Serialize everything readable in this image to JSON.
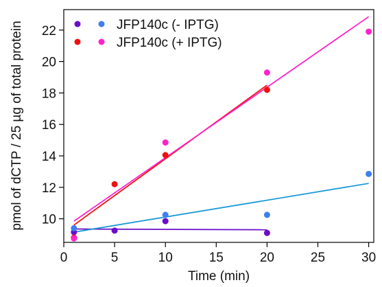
{
  "chart_data": {
    "type": "scatter",
    "xlabel": "Time (min)",
    "ylabel": "pmol of dCTP / 25 µg of total protein",
    "xlim": [
      0,
      30.5
    ],
    "ylim": [
      8.5,
      23.3
    ],
    "x_ticks": [
      0,
      5,
      10,
      15,
      20,
      25,
      30
    ],
    "y_ticks": [
      10,
      12,
      14,
      16,
      18,
      20,
      22
    ],
    "grid": false,
    "legend_placement": "top-left",
    "legend": [
      {
        "label": "JFP140c (-  IPTG)",
        "colors": [
          "#6a0dcc",
          "#3f7fee"
        ]
      },
      {
        "label": "JFP140c (+ IPTG)",
        "colors": [
          "#ee1111",
          "#ff22cc"
        ]
      }
    ],
    "series": [
      {
        "color": "#6a0dcc",
        "x": [
          1,
          5,
          10,
          20
        ],
        "y": [
          9.15,
          9.25,
          9.85,
          9.1
        ],
        "fit": {
          "x": [
            1,
            20
          ],
          "y": [
            9.35,
            9.3
          ],
          "color": "#6a0dcc"
        }
      },
      {
        "color": "#3f7fee",
        "x": [
          1,
          10,
          20,
          30
        ],
        "y": [
          9.4,
          10.25,
          10.25,
          12.85
        ],
        "fit": {
          "x": [
            1,
            30
          ],
          "y": [
            9.15,
            12.25
          ],
          "color": "#1a9ad6"
        }
      },
      {
        "color": "#ee1111",
        "x": [
          1,
          5,
          10,
          20
        ],
        "y": [
          8.8,
          12.2,
          14.05,
          18.2
        ],
        "fit": {
          "x": [
            1,
            20
          ],
          "y": [
            9.6,
            18.5
          ],
          "color": "#ee1111"
        }
      },
      {
        "color": "#ff22cc",
        "x": [
          1,
          10,
          20,
          30
        ],
        "y": [
          8.75,
          14.85,
          19.3,
          21.9
        ],
        "fit": {
          "x": [
            1,
            30
          ],
          "y": [
            9.85,
            22.85
          ],
          "color": "#ff22cc"
        }
      }
    ]
  }
}
